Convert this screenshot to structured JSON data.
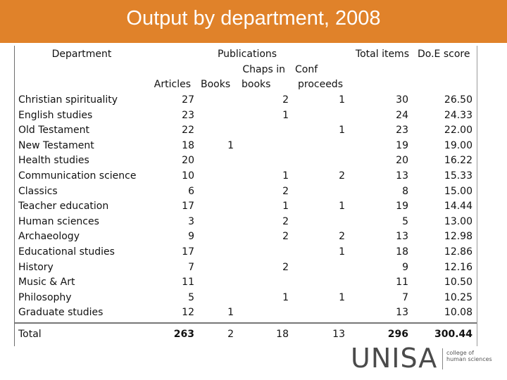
{
  "title": "Output by department, 2008",
  "headers": {
    "department": "Department",
    "publications": "Publications",
    "chaps_in": "Chaps in",
    "books_sub": "books",
    "conf": "Conf",
    "proceeds": "proceeds",
    "articles": "Articles",
    "books": "Books",
    "total_items": "Total items",
    "doe_score": "Do.E score"
  },
  "rows": [
    {
      "dept": "Christian spirituality",
      "articles": "27",
      "books": "",
      "chaps": "2",
      "conf": "1",
      "total": "30",
      "score": "26.50"
    },
    {
      "dept": "English studies",
      "articles": "23",
      "books": "",
      "chaps": "1",
      "conf": "",
      "total": "24",
      "score": "24.33"
    },
    {
      "dept": "Old Testament",
      "articles": "22",
      "books": "",
      "chaps": "",
      "conf": "1",
      "total": "23",
      "score": "22.00"
    },
    {
      "dept": "New Testament",
      "articles": "18",
      "books": "1",
      "chaps": "",
      "conf": "",
      "total": "19",
      "score": "19.00"
    },
    {
      "dept": "Health studies",
      "articles": "20",
      "books": "",
      "chaps": "",
      "conf": "",
      "total": "20",
      "score": "16.22"
    },
    {
      "dept": "Communication science",
      "articles": "10",
      "books": "",
      "chaps": "1",
      "conf": "2",
      "total": "13",
      "score": "15.33"
    },
    {
      "dept": "Classics",
      "articles": "6",
      "books": "",
      "chaps": "2",
      "conf": "",
      "total": "8",
      "score": "15.00"
    },
    {
      "dept": "Teacher education",
      "articles": "17",
      "books": "",
      "chaps": "1",
      "conf": "1",
      "total": "19",
      "score": "14.44"
    },
    {
      "dept": "Human sciences",
      "articles": "3",
      "books": "",
      "chaps": "2",
      "conf": "",
      "total": "5",
      "score": "13.00"
    },
    {
      "dept": "Archaeology",
      "articles": "9",
      "books": "",
      "chaps": "2",
      "conf": "2",
      "total": "13",
      "score": "12.98"
    },
    {
      "dept": "Educational studies",
      "articles": "17",
      "books": "",
      "chaps": "",
      "conf": "1",
      "total": "18",
      "score": "12.86"
    },
    {
      "dept": "History",
      "articles": "7",
      "books": "",
      "chaps": "2",
      "conf": "",
      "total": "9",
      "score": "12.16"
    },
    {
      "dept": "Music & Art",
      "articles": "11",
      "books": "",
      "chaps": "",
      "conf": "",
      "total": "11",
      "score": "10.50"
    },
    {
      "dept": "Philosophy",
      "articles": "5",
      "books": "",
      "chaps": "1",
      "conf": "1",
      "total": "7",
      "score": "10.25"
    },
    {
      "dept": "Graduate studies",
      "articles": "12",
      "books": "1",
      "chaps": "",
      "conf": "",
      "total": "13",
      "score": "10.08"
    }
  ],
  "total": {
    "label": "Total",
    "articles": "263",
    "books": "2",
    "chaps": "18",
    "conf": "13",
    "total": "296",
    "score": "300.44"
  },
  "logo": {
    "word": "UNISA",
    "sub1": "college of",
    "sub2": "human sciences"
  },
  "colors": {
    "title_bar": "#e0822a",
    "title_text": "#ffffff"
  }
}
